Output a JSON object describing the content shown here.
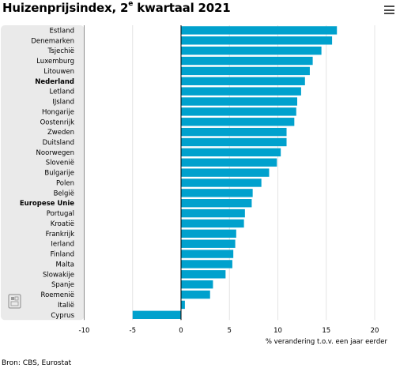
{
  "title_main": "Huizenprijsindex, 2",
  "title_sup": "e",
  "title_rest": " kwartaal 2021",
  "menu": {
    "icon": "hamburger-menu-icon"
  },
  "source": "Bron: CBS, Eurostat",
  "colors": {
    "bar": "#00a1cd",
    "panel": "#eaeaea",
    "zero_line": "#000000"
  },
  "chart_data": {
    "type": "bar",
    "orientation": "horizontal",
    "title": "Huizenprijsindex, 2e kwartaal 2021",
    "xlabel": "% verandering t.o.v. een jaar eerder",
    "ylabel": "",
    "xlim": [
      -10,
      20
    ],
    "xticks": [
      -10,
      -5,
      0,
      5,
      10,
      15,
      20
    ],
    "grid": true,
    "categories": [
      "Estland",
      "Denemarken",
      "Tsjechië",
      "Luxemburg",
      "Litouwen",
      "Nederland",
      "Letland",
      "IJsland",
      "Hongarije",
      "Oostenrijk",
      "Zweden",
      "Duitsland",
      "Noorwegen",
      "Slovenië",
      "Bulgarije",
      "Polen",
      "België",
      "Europese Unie",
      "Portugal",
      "Kroatië",
      "Frankrijk",
      "Ierland",
      "Finland",
      "Malta",
      "Slowakije",
      "Spanje",
      "Roemenië",
      "Italië",
      "Cyprus"
    ],
    "highlighted": [
      "Nederland",
      "Europese Unie"
    ],
    "values": [
      16.1,
      15.6,
      14.5,
      13.6,
      13.3,
      12.8,
      12.4,
      12.0,
      11.9,
      11.7,
      10.9,
      10.9,
      10.3,
      9.9,
      9.1,
      8.3,
      7.4,
      7.3,
      6.6,
      6.5,
      5.7,
      5.6,
      5.4,
      5.3,
      4.6,
      3.3,
      3.0,
      0.4,
      -5.0
    ]
  }
}
